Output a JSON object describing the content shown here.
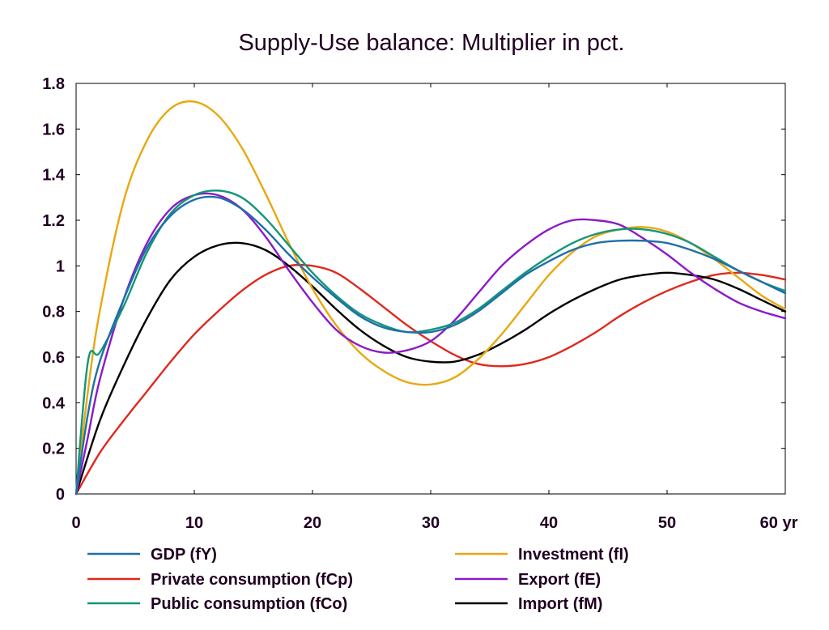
{
  "chart_data": {
    "type": "line",
    "title": "Supply-Use balance: Multiplier in pct.",
    "xlabel": "",
    "ylabel": "",
    "xlim": [
      0,
      60
    ],
    "ylim": [
      0,
      1.8
    ],
    "x_ticks": [
      0,
      10,
      20,
      30,
      40,
      50,
      60
    ],
    "x_tick_labels": [
      "0",
      "10",
      "20",
      "30",
      "40",
      "50",
      "60 yr"
    ],
    "y_ticks": [
      0,
      0.2,
      0.4,
      0.6,
      0.8,
      1,
      1.2,
      1.4,
      1.6,
      1.8
    ],
    "y_tick_labels": [
      "0",
      "0.2",
      "0.4",
      "0.6",
      "0.8",
      "1",
      "1.2",
      "1.4",
      "1.6",
      "1.8"
    ],
    "grid": false,
    "legend_position": "bottom",
    "series": [
      {
        "name": "GDP (fY)",
        "color": "#1f6fa8",
        "x": [
          0,
          1,
          2,
          4,
          6,
          8,
          10,
          12,
          14,
          16,
          18,
          20,
          22,
          24,
          26,
          28,
          30,
          32,
          34,
          36,
          38,
          40,
          42,
          44,
          46,
          48,
          50,
          52,
          54,
          56,
          58,
          60
        ],
        "y": [
          0,
          0.35,
          0.58,
          0.85,
          1.08,
          1.22,
          1.29,
          1.3,
          1.25,
          1.16,
          1.05,
          0.95,
          0.86,
          0.78,
          0.73,
          0.71,
          0.71,
          0.74,
          0.8,
          0.88,
          0.96,
          1.02,
          1.07,
          1.1,
          1.11,
          1.11,
          1.1,
          1.07,
          1.03,
          0.98,
          0.93,
          0.88
        ]
      },
      {
        "name": "Private consumption (fCp)",
        "color": "#e0281e",
        "x": [
          0,
          2,
          4,
          6,
          8,
          10,
          12,
          14,
          16,
          18,
          20,
          22,
          24,
          26,
          28,
          30,
          32,
          34,
          36,
          38,
          40,
          42,
          44,
          46,
          48,
          50,
          52,
          54,
          56,
          58,
          60
        ],
        "y": [
          0,
          0.18,
          0.32,
          0.45,
          0.58,
          0.7,
          0.8,
          0.89,
          0.96,
          1.0,
          1.0,
          0.97,
          0.9,
          0.82,
          0.74,
          0.67,
          0.61,
          0.57,
          0.56,
          0.57,
          0.6,
          0.65,
          0.71,
          0.78,
          0.84,
          0.89,
          0.93,
          0.96,
          0.97,
          0.96,
          0.94
        ]
      },
      {
        "name": "Public consumption (fCo)",
        "color": "#13967a",
        "x": [
          0,
          1,
          2,
          4,
          6,
          8,
          10,
          12,
          14,
          16,
          18,
          20,
          22,
          24,
          26,
          28,
          30,
          32,
          34,
          36,
          38,
          40,
          42,
          44,
          46,
          48,
          50,
          52,
          54,
          56,
          58,
          60
        ],
        "y": [
          0,
          0.58,
          0.62,
          0.82,
          1.06,
          1.23,
          1.31,
          1.33,
          1.3,
          1.21,
          1.09,
          0.97,
          0.87,
          0.79,
          0.74,
          0.71,
          0.72,
          0.75,
          0.81,
          0.89,
          0.97,
          1.04,
          1.1,
          1.14,
          1.16,
          1.16,
          1.14,
          1.1,
          1.04,
          0.98,
          0.93,
          0.89
        ]
      },
      {
        "name": "Investment (fI)",
        "color": "#e8a810",
        "x": [
          0,
          1,
          2,
          4,
          6,
          8,
          10,
          12,
          14,
          16,
          18,
          20,
          22,
          24,
          26,
          28,
          30,
          32,
          34,
          36,
          38,
          40,
          42,
          44,
          46,
          48,
          50,
          52,
          54,
          56,
          58,
          60
        ],
        "y": [
          0,
          0.45,
          0.8,
          1.28,
          1.55,
          1.69,
          1.72,
          1.66,
          1.52,
          1.32,
          1.1,
          0.9,
          0.74,
          0.62,
          0.54,
          0.49,
          0.48,
          0.51,
          0.59,
          0.7,
          0.83,
          0.96,
          1.06,
          1.13,
          1.16,
          1.17,
          1.15,
          1.1,
          1.03,
          0.95,
          0.87,
          0.81
        ]
      },
      {
        "name": "Export (fE)",
        "color": "#8b1ac8",
        "x": [
          0,
          1,
          2,
          4,
          6,
          8,
          10,
          12,
          14,
          16,
          18,
          20,
          22,
          24,
          26,
          28,
          30,
          32,
          34,
          36,
          38,
          40,
          42,
          44,
          46,
          48,
          50,
          52,
          54,
          56,
          58,
          60
        ],
        "y": [
          0,
          0.25,
          0.5,
          0.85,
          1.1,
          1.25,
          1.31,
          1.31,
          1.25,
          1.13,
          0.98,
          0.84,
          0.72,
          0.65,
          0.62,
          0.63,
          0.67,
          0.76,
          0.88,
          1.0,
          1.09,
          1.16,
          1.2,
          1.2,
          1.18,
          1.12,
          1.05,
          0.97,
          0.9,
          0.84,
          0.8,
          0.77
        ]
      },
      {
        "name": "Import (fM)",
        "color": "#000000",
        "x": [
          0,
          2,
          4,
          6,
          8,
          10,
          12,
          14,
          16,
          18,
          20,
          22,
          24,
          26,
          28,
          30,
          32,
          34,
          36,
          38,
          40,
          42,
          44,
          46,
          48,
          50,
          52,
          54,
          56,
          58,
          60
        ],
        "y": [
          0,
          0.32,
          0.56,
          0.77,
          0.94,
          1.04,
          1.09,
          1.1,
          1.07,
          1.0,
          0.91,
          0.81,
          0.72,
          0.65,
          0.6,
          0.58,
          0.58,
          0.61,
          0.66,
          0.72,
          0.79,
          0.85,
          0.9,
          0.94,
          0.96,
          0.97,
          0.96,
          0.94,
          0.9,
          0.85,
          0.8
        ]
      }
    ]
  }
}
